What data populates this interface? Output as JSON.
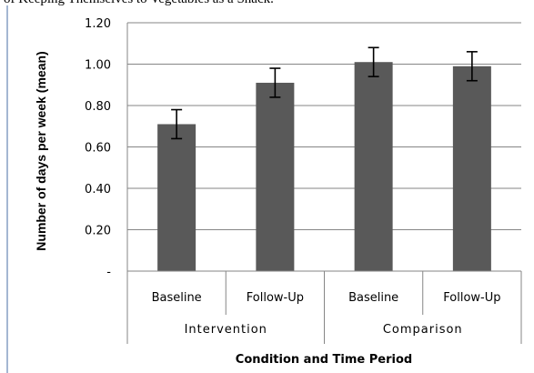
{
  "top_text": "of Keeping Themselves to Vegetables as a Snack.",
  "chart_data": {
    "type": "bar",
    "categories": [
      "Baseline",
      "Follow-Up",
      "Baseline",
      "Follow-Up"
    ],
    "groups": [
      {
        "label": "Intervention",
        "categories": [
          0,
          1
        ]
      },
      {
        "label": "Comparison",
        "categories": [
          2,
          3
        ]
      }
    ],
    "values": [
      0.71,
      0.91,
      1.01,
      0.99
    ],
    "errors": [
      0.07,
      0.07,
      0.07,
      0.07
    ],
    "title": "",
    "xlabel": "Condition and Time Period",
    "ylabel": "Number of days per week (mean)",
    "ylim": [
      0,
      1.2
    ],
    "yticks": [
      {
        "value": 0,
        "label": "-"
      },
      {
        "value": 0.2,
        "label": "0.20"
      },
      {
        "value": 0.4,
        "label": "0.40"
      },
      {
        "value": 0.6,
        "label": "0.60"
      },
      {
        "value": 0.8,
        "label": "0.80"
      },
      {
        "value": 1.0,
        "label": "1.00"
      },
      {
        "value": 1.2,
        "label": "1.20"
      }
    ],
    "grid": true,
    "bar_color": "#595959",
    "grid_color": "#868686"
  }
}
